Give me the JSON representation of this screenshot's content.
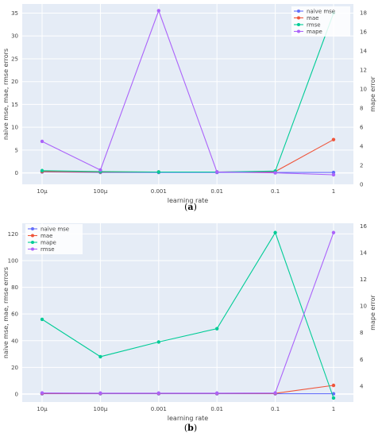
{
  "chart_data": [
    {
      "type": "line",
      "caption": "a",
      "x": [
        "10μ",
        "100μ",
        "0.001",
        "0.01",
        "0.1",
        "1"
      ],
      "xlabel": "learning rate",
      "ylabel": "naive mse, mae, rmse errors",
      "y2label": "mape error",
      "ylim": [
        -2.5,
        37
      ],
      "y2lim": [
        0,
        18.9
      ],
      "yticks": [
        0,
        5,
        10,
        15,
        20,
        25,
        30,
        35
      ],
      "y2ticks": [
        0,
        2,
        4,
        6,
        8,
        10,
        12,
        14,
        16,
        18
      ],
      "legend_position": "top-right",
      "grid": true,
      "series": [
        {
          "name": "naive mse",
          "axis": "left",
          "color": "#636efa",
          "values": [
            0.2,
            0.1,
            0.1,
            0.1,
            0.1,
            0.1
          ]
        },
        {
          "name": "mae",
          "axis": "left",
          "color": "#ef553b",
          "values": [
            0.3,
            0.2,
            0.2,
            0.2,
            0.3,
            7.3
          ]
        },
        {
          "name": "rmse",
          "axis": "left",
          "color": "#00cc96",
          "values": [
            0.5,
            0.3,
            0.2,
            0.2,
            0.4,
            35
          ]
        },
        {
          "name": "mape",
          "axis": "right",
          "color": "#ab63fa",
          "values": [
            4.5,
            1.5,
            18.2,
            1.3,
            1.2,
            1.0
          ]
        }
      ]
    },
    {
      "type": "line",
      "caption": "b",
      "x": [
        "10μ",
        "100μ",
        "0.001",
        "0.01",
        "0.1",
        "1"
      ],
      "xlabel": "learning rate",
      "ylabel": "naive mse, mae, rmse errors",
      "y2label": "mape error",
      "ylim": [
        -6,
        128
      ],
      "y2lim": [
        2.8,
        16.2
      ],
      "yticks": [
        0,
        20,
        40,
        60,
        80,
        100,
        120
      ],
      "y2ticks": [
        4,
        6,
        8,
        10,
        12,
        14,
        16
      ],
      "legend_position": "top-left",
      "grid": true,
      "series": [
        {
          "name": "naive mse",
          "axis": "left",
          "color": "#636efa",
          "values": [
            0.2,
            0.2,
            0.2,
            0.2,
            0.2,
            0.2
          ]
        },
        {
          "name": "mae",
          "axis": "left",
          "color": "#ef553b",
          "values": [
            0.5,
            0.5,
            0.5,
            0.5,
            0.5,
            6.5
          ]
        },
        {
          "name": "mape",
          "axis": "right",
          "color": "#00cc96",
          "values": [
            9.0,
            6.2,
            7.3,
            8.3,
            15.5,
            3.1
          ]
        },
        {
          "name": "rmse",
          "axis": "left",
          "color": "#ab63fa",
          "values": [
            0.8,
            0.7,
            0.7,
            0.7,
            0.8,
            121
          ]
        }
      ]
    }
  ]
}
